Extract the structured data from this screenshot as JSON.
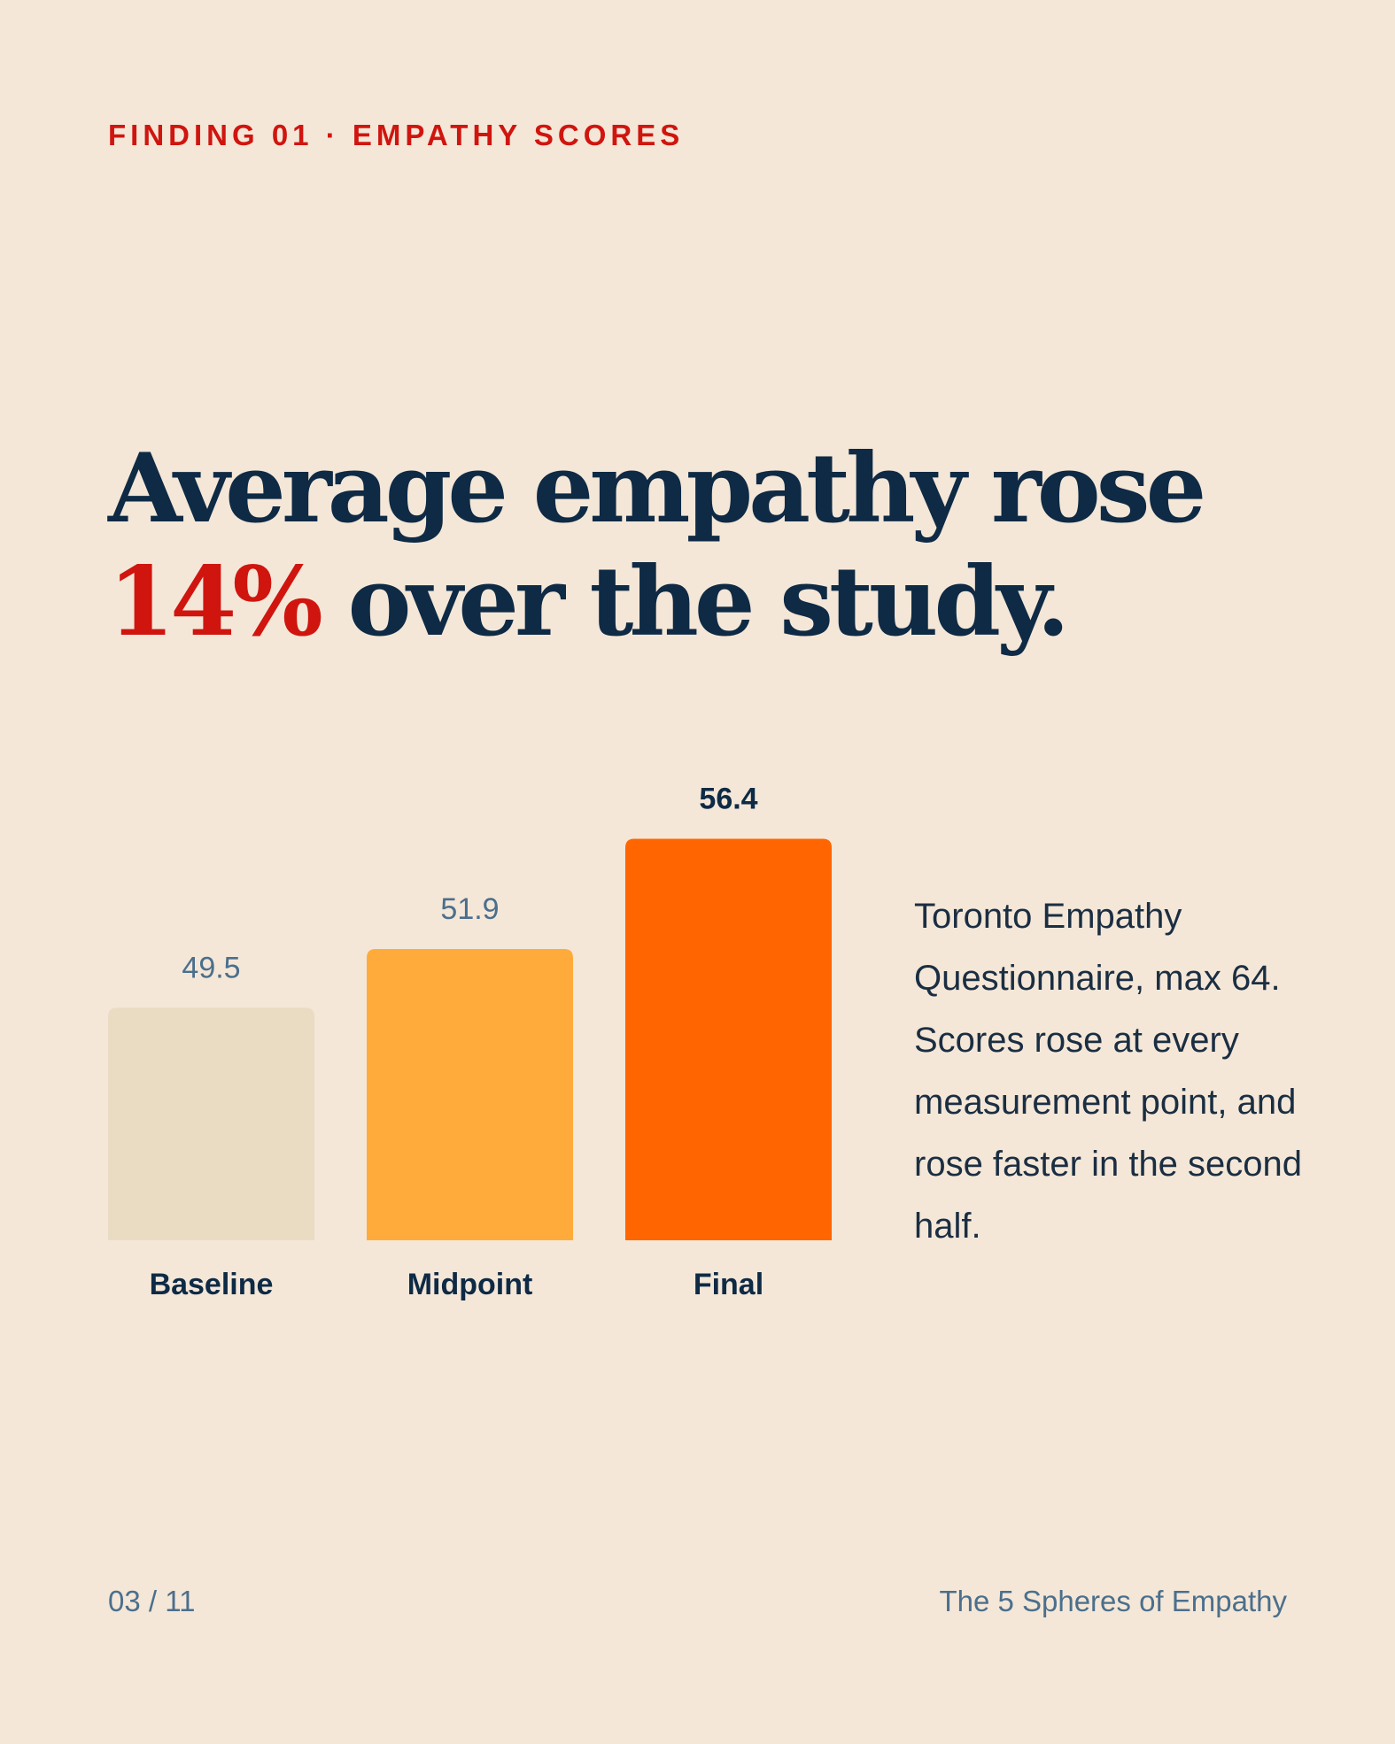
{
  "eyebrow": "FINDING 01 · EMPATHY SCORES",
  "headline": {
    "before": "Average empathy rose ",
    "highlight": "14%",
    "after": " over the study."
  },
  "caption": "Toronto Empathy Questionnaire, max 64. Scores rose at every measurement point, and rose faster in the second half.",
  "footer": {
    "page": "03 / 11",
    "series_title": "The 5 Spheres of Empathy"
  },
  "colors": {
    "background": "#F4E7D8",
    "accent": "#D0150F",
    "navy": "#0E2A45",
    "muted": "#4B6F8C"
  },
  "chart_data": {
    "type": "bar",
    "title": "",
    "xlabel": "",
    "ylabel": "",
    "categories": [
      "Baseline",
      "Midpoint",
      "Final"
    ],
    "values": [
      49.5,
      51.9,
      56.4
    ],
    "value_labels": [
      "49.5",
      "51.9",
      "56.4"
    ],
    "colors": [
      "#EADBC3",
      "#FFAB3C",
      "#FF6500"
    ],
    "highlight_index": 2,
    "grid": false,
    "legend": "none"
  }
}
